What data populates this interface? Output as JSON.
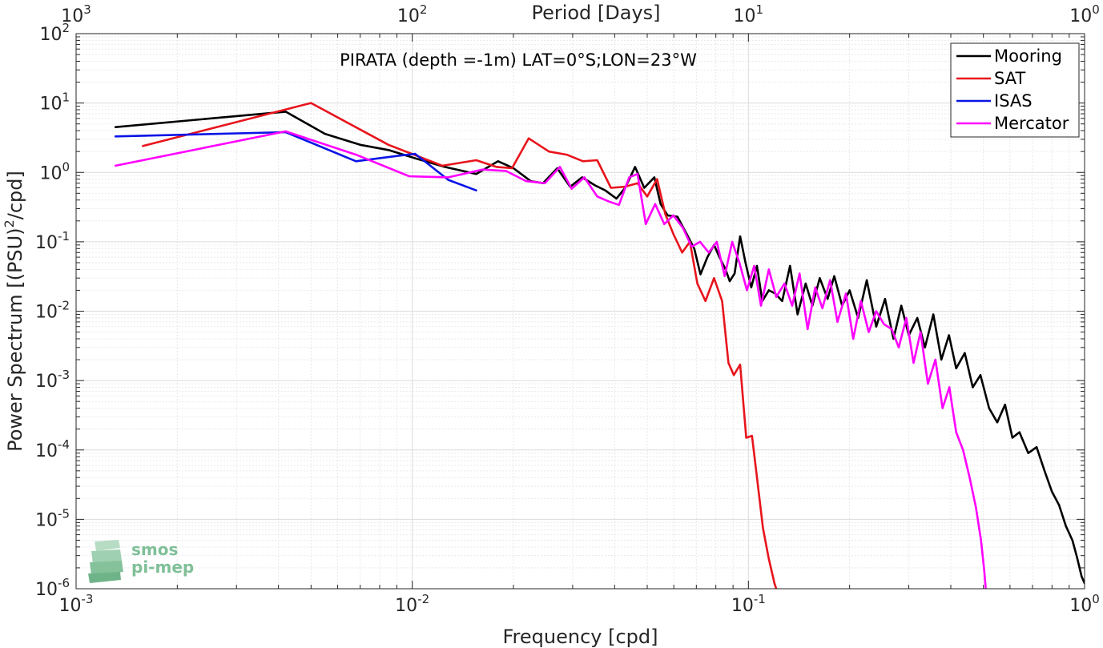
{
  "chart_data": {
    "type": "line",
    "title": "PIRATA (depth =-1m) LAT=0°S;LON=23°W",
    "xlabel": "Frequency [cpd]",
    "ylabel": "Power Spectrum [(PSU)²/cpd]",
    "ylabel_main": "Power Spectrum [(PSU)",
    "ylabel_sup": "2",
    "ylabel_tail": "/cpd]",
    "top_xlabel": "Period [Days]",
    "xscale": "log",
    "yscale": "log",
    "xlim": [
      0.001,
      1
    ],
    "ylim": [
      1e-06,
      100
    ],
    "grid": true,
    "legend_position": "top-right",
    "x_ticks": [
      {
        "base": "10",
        "exp": "-3",
        "value": 0.001
      },
      {
        "base": "10",
        "exp": "-2",
        "value": 0.01
      },
      {
        "base": "10",
        "exp": "-1",
        "value": 0.1
      },
      {
        "base": "10",
        "exp": "0",
        "value": 1
      }
    ],
    "y_ticks": [
      {
        "base": "10",
        "exp": "-6",
        "value": 1e-06
      },
      {
        "base": "10",
        "exp": "-5",
        "value": 1e-05
      },
      {
        "base": "10",
        "exp": "-4",
        "value": 0.0001
      },
      {
        "base": "10",
        "exp": "-3",
        "value": 0.001
      },
      {
        "base": "10",
        "exp": "-2",
        "value": 0.01
      },
      {
        "base": "10",
        "exp": "-1",
        "value": 0.1
      },
      {
        "base": "10",
        "exp": "0",
        "value": 1
      },
      {
        "base": "10",
        "exp": "1",
        "value": 10
      },
      {
        "base": "10",
        "exp": "2",
        "value": 100
      }
    ],
    "top_ticks": [
      {
        "base": "10",
        "exp": "3",
        "period": 1000
      },
      {
        "base": "10",
        "exp": "2",
        "period": 100
      },
      {
        "base": "10",
        "exp": "1",
        "period": 10
      },
      {
        "base": "10",
        "exp": "0",
        "period": 1
      }
    ],
    "series": [
      {
        "name": "Mooring",
        "color": "#000000",
        "points": [
          [
            0.00131,
            4.5
          ],
          [
            0.0042,
            7.5
          ],
          [
            0.0055,
            3.6
          ],
          [
            0.007,
            2.5
          ],
          [
            0.0085,
            2.1
          ],
          [
            0.0102,
            1.6
          ],
          [
            0.0125,
            1.2
          ],
          [
            0.0155,
            0.95
          ],
          [
            0.018,
            1.45
          ],
          [
            0.02,
            1.15
          ],
          [
            0.0225,
            0.75
          ],
          [
            0.0245,
            0.7
          ],
          [
            0.027,
            1.15
          ],
          [
            0.0295,
            0.62
          ],
          [
            0.032,
            0.85
          ],
          [
            0.035,
            0.65
          ],
          [
            0.0375,
            0.55
          ],
          [
            0.0405,
            0.42
          ],
          [
            0.043,
            0.6
          ],
          [
            0.046,
            1.2
          ],
          [
            0.049,
            0.6
          ],
          [
            0.0525,
            0.85
          ],
          [
            0.0548,
            0.35
          ],
          [
            0.0575,
            0.24
          ],
          [
            0.0615,
            0.23
          ],
          [
            0.0655,
            0.13
          ],
          [
            0.069,
            0.08
          ],
          [
            0.072,
            0.034
          ],
          [
            0.0755,
            0.06
          ],
          [
            0.079,
            0.09
          ],
          [
            0.082,
            0.06
          ],
          [
            0.0855,
            0.04
          ],
          [
            0.088,
            0.027
          ],
          [
            0.091,
            0.035
          ],
          [
            0.0945,
            0.12
          ],
          [
            0.098,
            0.05
          ],
          [
            0.102,
            0.022
          ],
          [
            0.106,
            0.045
          ],
          [
            0.11,
            0.014
          ],
          [
            0.115,
            0.02
          ],
          [
            0.12,
            0.018
          ],
          [
            0.126,
            0.014
          ],
          [
            0.133,
            0.045
          ],
          [
            0.14,
            0.009
          ],
          [
            0.148,
            0.025
          ],
          [
            0.155,
            0.012
          ],
          [
            0.163,
            0.03
          ],
          [
            0.172,
            0.015
          ],
          [
            0.18,
            0.032
          ],
          [
            0.19,
            0.012
          ],
          [
            0.2,
            0.02
          ],
          [
            0.212,
            0.008
          ],
          [
            0.225,
            0.028
          ],
          [
            0.24,
            0.006
          ],
          [
            0.255,
            0.015
          ],
          [
            0.27,
            0.004
          ],
          [
            0.285,
            0.012
          ],
          [
            0.3,
            0.0045
          ],
          [
            0.318,
            0.008
          ],
          [
            0.335,
            0.003
          ],
          [
            0.355,
            0.009
          ],
          [
            0.375,
            0.002
          ],
          [
            0.395,
            0.0045
          ],
          [
            0.415,
            0.0015
          ],
          [
            0.44,
            0.0025
          ],
          [
            0.465,
            0.0008
          ],
          [
            0.49,
            0.0012
          ],
          [
            0.52,
            0.0004
          ],
          [
            0.55,
            0.00025
          ],
          [
            0.58,
            0.00045
          ],
          [
            0.61,
            0.00015
          ],
          [
            0.64,
            0.00018
          ],
          [
            0.68,
            9e-05
          ],
          [
            0.72,
            0.00011
          ],
          [
            0.76,
            5e-05
          ],
          [
            0.8,
            2.5e-05
          ],
          [
            0.84,
            1.6e-05
          ],
          [
            0.88,
            8e-06
          ],
          [
            0.92,
            5e-06
          ],
          [
            0.95,
            2.8e-06
          ],
          [
            0.98,
            1.5e-06
          ],
          [
            1.0,
            1.2e-06
          ]
        ]
      },
      {
        "name": "SAT",
        "color": "#e8141c",
        "points": [
          [
            0.00158,
            2.4
          ],
          [
            0.005,
            10.0
          ],
          [
            0.0085,
            2.5
          ],
          [
            0.0123,
            1.25
          ],
          [
            0.0155,
            1.5
          ],
          [
            0.0178,
            1.2
          ],
          [
            0.0198,
            1.15
          ],
          [
            0.0222,
            3.1
          ],
          [
            0.0255,
            2.0
          ],
          [
            0.0288,
            1.8
          ],
          [
            0.0322,
            1.45
          ],
          [
            0.0355,
            1.5
          ],
          [
            0.039,
            0.6
          ],
          [
            0.0428,
            0.62
          ],
          [
            0.0468,
            0.7
          ],
          [
            0.05,
            0.45
          ],
          [
            0.0535,
            0.8
          ],
          [
            0.0566,
            0.25
          ],
          [
            0.0598,
            0.13
          ],
          [
            0.0635,
            0.07
          ],
          [
            0.067,
            0.1
          ],
          [
            0.0705,
            0.025
          ],
          [
            0.0745,
            0.014
          ],
          [
            0.079,
            0.03
          ],
          [
            0.0835,
            0.014
          ],
          [
            0.0872,
            0.0018
          ],
          [
            0.0905,
            0.0012
          ],
          [
            0.0945,
            0.0017
          ],
          [
            0.0985,
            0.00015
          ],
          [
            0.1025,
            0.00016
          ],
          [
            0.1068,
            3e-05
          ],
          [
            0.1105,
            7.5e-06
          ],
          [
            0.1148,
            2.8e-06
          ],
          [
            0.1195,
            1.2e-06
          ],
          [
            0.1228,
            8e-07
          ]
        ]
      },
      {
        "name": "ISAS",
        "color": "#0a14e6",
        "points": [
          [
            0.00131,
            3.3
          ],
          [
            0.0042,
            3.8
          ],
          [
            0.0068,
            1.45
          ],
          [
            0.0092,
            1.75
          ],
          [
            0.0102,
            1.85
          ],
          [
            0.0112,
            1.3
          ],
          [
            0.0128,
            0.78
          ],
          [
            0.0155,
            0.55
          ]
        ]
      },
      {
        "name": "Mercator",
        "color": "#ff00ff",
        "points": [
          [
            0.00131,
            1.25
          ],
          [
            0.0042,
            3.9
          ],
          [
            0.0068,
            1.8
          ],
          [
            0.0098,
            0.88
          ],
          [
            0.0128,
            0.85
          ],
          [
            0.0162,
            1.1
          ],
          [
            0.019,
            1.05
          ],
          [
            0.0218,
            0.75
          ],
          [
            0.0248,
            0.7
          ],
          [
            0.0275,
            1.2
          ],
          [
            0.0298,
            0.58
          ],
          [
            0.0325,
            0.85
          ],
          [
            0.0355,
            0.45
          ],
          [
            0.0385,
            0.38
          ],
          [
            0.0412,
            0.34
          ],
          [
            0.0442,
            0.85
          ],
          [
            0.0468,
            0.95
          ],
          [
            0.0495,
            0.18
          ],
          [
            0.0528,
            0.35
          ],
          [
            0.0562,
            0.18
          ],
          [
            0.0598,
            0.24
          ],
          [
            0.0638,
            0.16
          ],
          [
            0.0678,
            0.085
          ],
          [
            0.0718,
            0.1
          ],
          [
            0.0762,
            0.07
          ],
          [
            0.0805,
            0.1
          ],
          [
            0.085,
            0.032
          ],
          [
            0.0895,
            0.1
          ],
          [
            0.094,
            0.05
          ],
          [
            0.099,
            0.02
          ],
          [
            0.104,
            0.045
          ],
          [
            0.109,
            0.012
          ],
          [
            0.115,
            0.04
          ],
          [
            0.121,
            0.016
          ],
          [
            0.128,
            0.025
          ],
          [
            0.135,
            0.012
          ],
          [
            0.142,
            0.035
          ],
          [
            0.15,
            0.0055
          ],
          [
            0.158,
            0.022
          ],
          [
            0.166,
            0.011
          ],
          [
            0.175,
            0.028
          ],
          [
            0.184,
            0.007
          ],
          [
            0.195,
            0.018
          ],
          [
            0.205,
            0.004
          ],
          [
            0.216,
            0.014
          ],
          [
            0.228,
            0.005
          ],
          [
            0.24,
            0.01
          ],
          [
            0.253,
            0.0065
          ],
          [
            0.267,
            0.0055
          ],
          [
            0.28,
            0.003
          ],
          [
            0.295,
            0.008
          ],
          [
            0.31,
            0.0018
          ],
          [
            0.325,
            0.005
          ],
          [
            0.342,
            0.0009
          ],
          [
            0.36,
            0.002
          ],
          [
            0.378,
            0.0004
          ],
          [
            0.396,
            0.0008
          ],
          [
            0.415,
            0.00018
          ],
          [
            0.435,
            0.0001
          ],
          [
            0.455,
            4e-05
          ],
          [
            0.475,
            1.5e-05
          ],
          [
            0.492,
            5e-06
          ],
          [
            0.503,
            1.8e-06
          ],
          [
            0.51,
            8e-07
          ]
        ]
      }
    ]
  },
  "legend": {
    "items": [
      {
        "label": "Mooring",
        "color": "#000000"
      },
      {
        "label": "SAT",
        "color": "#e8141c"
      },
      {
        "label": "ISAS",
        "color": "#0a14e6"
      },
      {
        "label": "Mercator",
        "color": "#ff00ff"
      }
    ]
  },
  "logo": {
    "line1": "smos",
    "line2": "pi-mep",
    "color": "#7fbf98"
  }
}
